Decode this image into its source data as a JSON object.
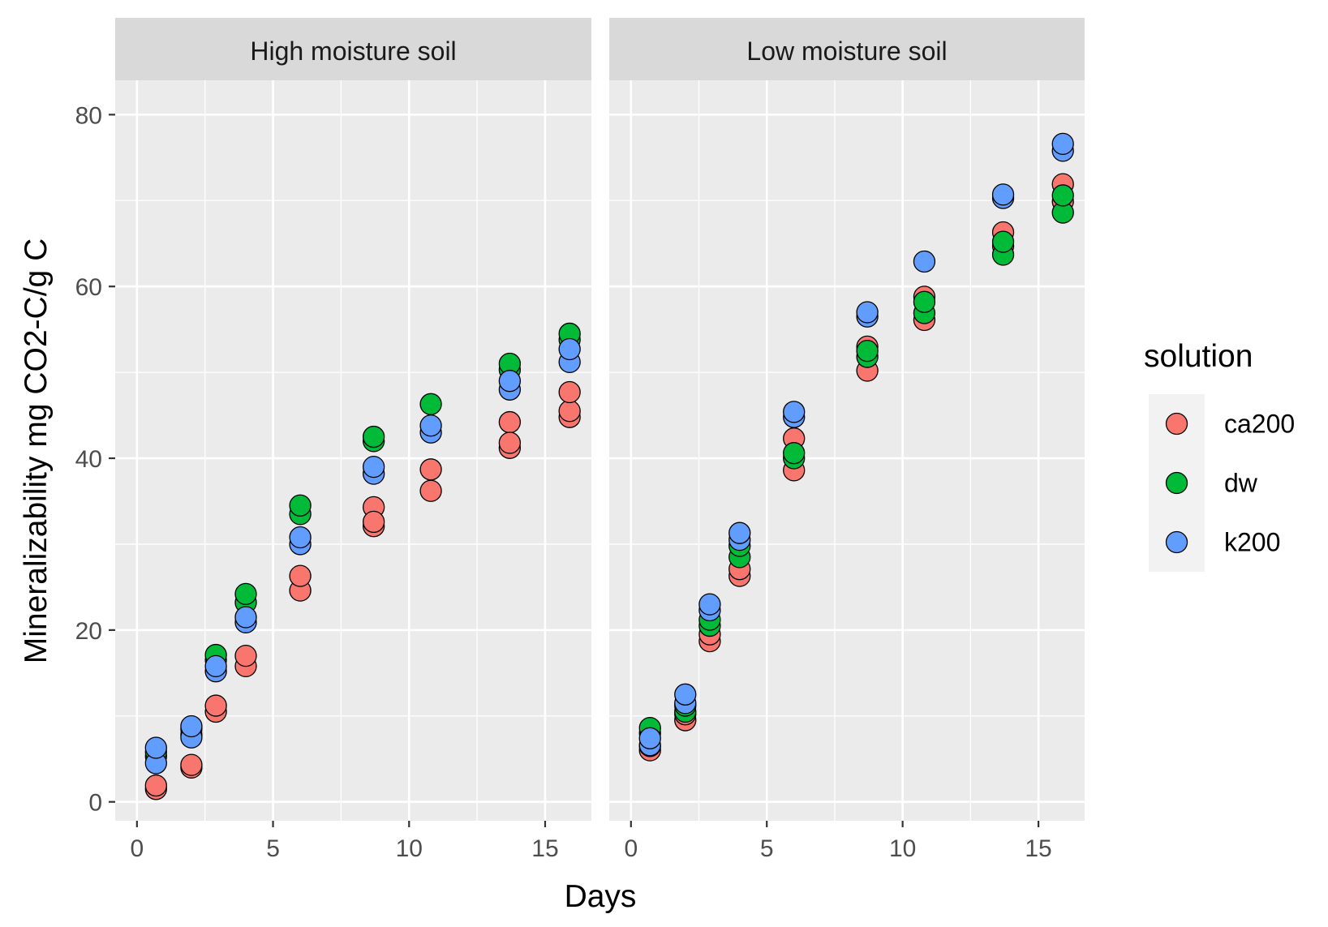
{
  "chart_data": {
    "type": "scatter",
    "xlabel": "Days",
    "ylabel": "Mineralizability mg CO2-C/g C",
    "xlim": [
      -0.8,
      16.7
    ],
    "ylim": [
      -2.2,
      84
    ],
    "x_ticks": [
      0,
      5,
      10,
      15
    ],
    "y_ticks": [
      0,
      20,
      40,
      60,
      80
    ],
    "grid": true,
    "legend": {
      "title": "solution",
      "position": "right",
      "entries": [
        {
          "label": "ca200",
          "color": "#F8766D"
        },
        {
          "label": "dw",
          "color": "#00BA38"
        },
        {
          "label": "k200",
          "color": "#619CFF"
        }
      ]
    },
    "panels": [
      {
        "title": "High moisture soil",
        "series": [
          {
            "name": "ca200",
            "color": "#F8766D",
            "points": [
              [
                0.7,
                1.5
              ],
              [
                0.7,
                1.9
              ],
              [
                2.0,
                4.0
              ],
              [
                2.0,
                4.3
              ],
              [
                2.9,
                10.5
              ],
              [
                2.9,
                11.2
              ],
              [
                4.0,
                15.8
              ],
              [
                4.0,
                17.0
              ],
              [
                6.0,
                24.6
              ],
              [
                6.0,
                26.3
              ],
              [
                8.7,
                32.1
              ],
              [
                8.7,
                34.3
              ],
              [
                8.7,
                32.6
              ],
              [
                10.8,
                36.2
              ],
              [
                10.8,
                38.7
              ],
              [
                13.7,
                41.2
              ],
              [
                13.7,
                44.2
              ],
              [
                13.7,
                41.8
              ],
              [
                15.9,
                44.8
              ],
              [
                15.9,
                45.5
              ],
              [
                15.9,
                47.7
              ]
            ]
          },
          {
            "name": "dw",
            "color": "#00BA38",
            "points": [
              [
                0.7,
                5.3
              ],
              [
                0.7,
                5.8
              ],
              [
                2.0,
                7.8
              ],
              [
                2.0,
                8.5
              ],
              [
                2.9,
                16.5
              ],
              [
                2.9,
                17.1
              ],
              [
                4.0,
                23.2
              ],
              [
                4.0,
                24.2
              ],
              [
                6.0,
                33.5
              ],
              [
                6.0,
                34.5
              ],
              [
                8.7,
                42.0
              ],
              [
                8.7,
                42.5
              ],
              [
                10.8,
                46.3
              ],
              [
                13.7,
                50.3
              ],
              [
                13.7,
                51.0
              ],
              [
                15.9,
                53.8
              ],
              [
                15.9,
                54.5
              ]
            ]
          },
          {
            "name": "k200",
            "color": "#619CFF",
            "points": [
              [
                0.7,
                4.5
              ],
              [
                0.7,
                6.3
              ],
              [
                2.0,
                7.5
              ],
              [
                2.0,
                8.8
              ],
              [
                2.9,
                15.2
              ],
              [
                2.9,
                15.8
              ],
              [
                4.0,
                20.9
              ],
              [
                4.0,
                21.5
              ],
              [
                6.0,
                30.0
              ],
              [
                6.0,
                30.8
              ],
              [
                8.7,
                38.2
              ],
              [
                8.7,
                39.0
              ],
              [
                10.8,
                43.0
              ],
              [
                10.8,
                43.8
              ],
              [
                13.7,
                48.0
              ],
              [
                13.7,
                49.0
              ],
              [
                15.9,
                51.2
              ],
              [
                15.9,
                52.7
              ]
            ]
          }
        ]
      },
      {
        "title": "Low moisture soil",
        "series": [
          {
            "name": "ca200",
            "color": "#F8766D",
            "points": [
              [
                0.7,
                6.0
              ],
              [
                0.7,
                6.5
              ],
              [
                2.0,
                9.5
              ],
              [
                2.0,
                10.2
              ],
              [
                2.9,
                18.7
              ],
              [
                2.9,
                19.5
              ],
              [
                4.0,
                26.3
              ],
              [
                4.0,
                27.1
              ],
              [
                6.0,
                38.6
              ],
              [
                6.0,
                42.3
              ],
              [
                8.7,
                50.2
              ],
              [
                8.7,
                53.0
              ],
              [
                10.8,
                56.1
              ],
              [
                10.8,
                58.8
              ],
              [
                13.7,
                64.7
              ],
              [
                13.7,
                66.3
              ],
              [
                15.9,
                69.9
              ],
              [
                15.9,
                71.9
              ]
            ]
          },
          {
            "name": "dw",
            "color": "#00BA38",
            "points": [
              [
                0.7,
                8.0
              ],
              [
                0.7,
                8.6
              ],
              [
                2.0,
                10.5
              ],
              [
                2.0,
                11.2
              ],
              [
                2.9,
                20.5
              ],
              [
                2.9,
                21.2
              ],
              [
                4.0,
                28.5
              ],
              [
                4.0,
                29.8
              ],
              [
                6.0,
                40.0
              ],
              [
                6.0,
                40.6
              ],
              [
                8.7,
                51.8
              ],
              [
                8.7,
                52.5
              ],
              [
                10.8,
                56.9
              ],
              [
                10.8,
                58.2
              ],
              [
                13.7,
                63.7
              ],
              [
                13.7,
                65.2
              ],
              [
                15.9,
                68.6
              ],
              [
                15.9,
                70.6
              ]
            ]
          },
          {
            "name": "k200",
            "color": "#619CFF",
            "points": [
              [
                0.7,
                6.6
              ],
              [
                0.7,
                7.4
              ],
              [
                2.0,
                11.5
              ],
              [
                2.0,
                12.5
              ],
              [
                2.9,
                22.3
              ],
              [
                2.9,
                23.0
              ],
              [
                4.0,
                30.5
              ],
              [
                4.0,
                31.3
              ],
              [
                6.0,
                44.8
              ],
              [
                6.0,
                45.4
              ],
              [
                8.7,
                56.5
              ],
              [
                8.7,
                57.0
              ],
              [
                10.8,
                62.9
              ],
              [
                13.7,
                70.3
              ],
              [
                13.7,
                70.7
              ],
              [
                15.9,
                75.8
              ],
              [
                15.9,
                76.6
              ]
            ]
          }
        ]
      }
    ]
  }
}
